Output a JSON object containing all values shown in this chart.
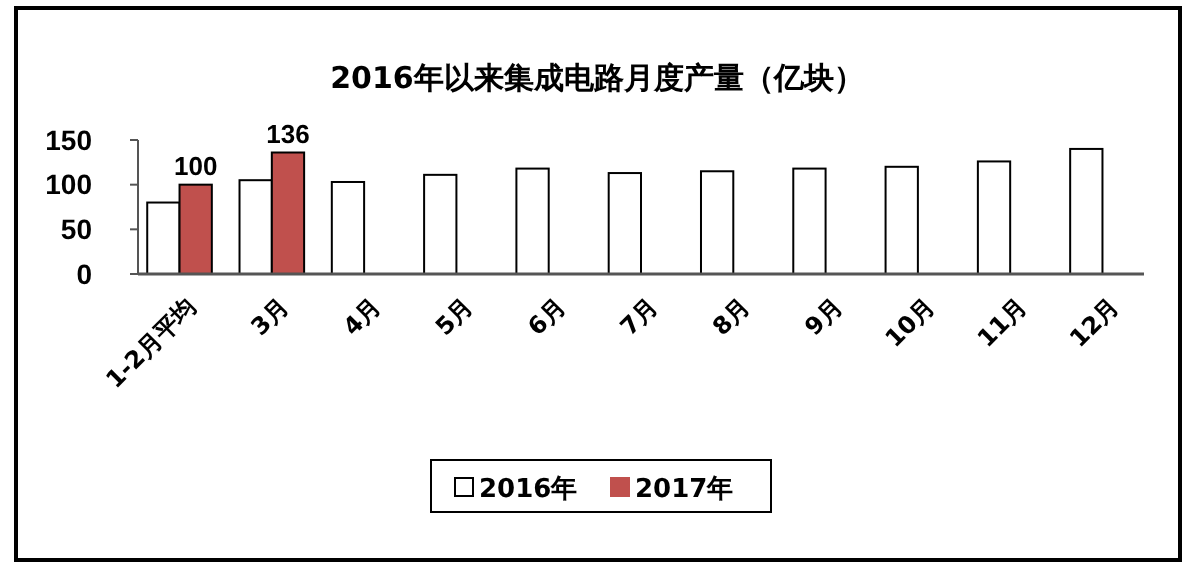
{
  "chart_data": {
    "type": "bar",
    "title": "2016年以来集成电路月度产量（亿块）",
    "categories": [
      "1-2月平均",
      "3月",
      "4月",
      "5月",
      "6月",
      "7月",
      "8月",
      "9月",
      "10月",
      "11月",
      "12月"
    ],
    "series": [
      {
        "name": "2016年",
        "color": "#ffffff",
        "values": [
          80,
          105,
          103,
          111,
          118,
          113,
          115,
          118,
          120,
          126,
          140
        ]
      },
      {
        "name": "2017年",
        "color": "#c0504d",
        "values": [
          100,
          136,
          null,
          null,
          null,
          null,
          null,
          null,
          null,
          null,
          null
        ],
        "value_labels": [
          "100",
          "136",
          null,
          null,
          null,
          null,
          null,
          null,
          null,
          null,
          null
        ]
      }
    ],
    "ylim": [
      0,
      150
    ],
    "yticks": [
      0,
      50,
      100,
      150
    ],
    "grid": false,
    "legend": "bottom"
  }
}
